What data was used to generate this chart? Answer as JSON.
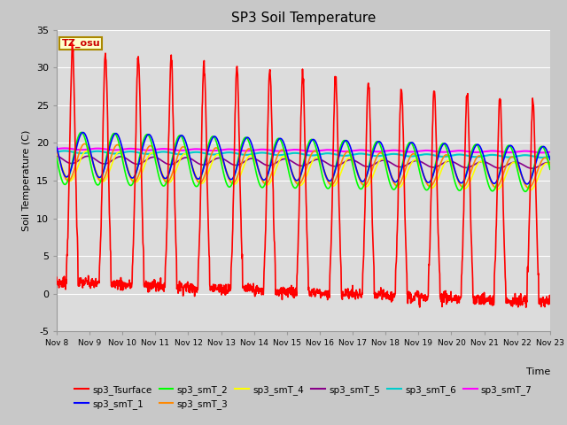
{
  "title": "SP3 Soil Temperature",
  "ylabel": "Soil Temperature (C)",
  "xlabel": "Time",
  "tz_label": "TZ_osu",
  "ylim": [
    -5,
    35
  ],
  "bg_color": "#dcdcdc",
  "series_colors": {
    "sp3_Tsurface": "#ff0000",
    "sp3_smT_1": "#0000ff",
    "sp3_smT_2": "#00ff00",
    "sp3_smT_3": "#ff8800",
    "sp3_smT_4": "#ffff00",
    "sp3_smT_5": "#880088",
    "sp3_smT_6": "#00cccc",
    "sp3_smT_7": "#ff00ff"
  },
  "xtick_labels": [
    "Nov 8",
    "Nov 9",
    "Nov 10",
    "Nov 11",
    "Nov 12",
    "Nov 13",
    "Nov 14",
    "Nov 15",
    "Nov 16",
    "Nov 17",
    "Nov 18",
    "Nov 19",
    "Nov 20",
    "Nov 21",
    "Nov 22",
    "Nov 23"
  ],
  "ytick_values": [
    -5,
    0,
    5,
    10,
    15,
    20,
    25,
    30,
    35
  ],
  "n_points": 1500,
  "days": 15
}
